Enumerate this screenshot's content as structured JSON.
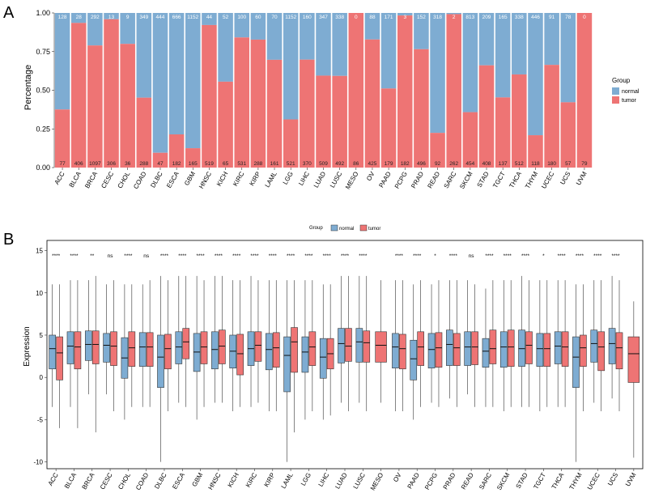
{
  "panel_labels": [
    "A",
    "B"
  ],
  "chart_data": [
    {
      "type": "bar",
      "stacked": true,
      "ylabel": "Percentage",
      "ylim": [
        0,
        1
      ],
      "yticks": [
        "0.00",
        "0.25",
        "0.50",
        "0.75",
        "1.00"
      ],
      "categories": [
        "ACC",
        "BLCA",
        "BRCA",
        "CESC",
        "CHOL",
        "COAD",
        "DLBC",
        "ESCA",
        "GBM",
        "HNSC",
        "KICH",
        "KIRC",
        "KIRP",
        "LAML",
        "LGG",
        "LIHC",
        "LUAD",
        "LUSC",
        "MESO",
        "OV",
        "PAAD",
        "PCPG",
        "PRAD",
        "READ",
        "SARC",
        "SKCM",
        "STAD",
        "TGCT",
        "THCA",
        "THYM",
        "UCEC",
        "UCS",
        "UVM"
      ],
      "legend_title": "Group",
      "legend_position": "right",
      "series": [
        {
          "name": "normal",
          "color": "#7EACD2",
          "counts": [
            128,
            28,
            292,
            13,
            9,
            349,
            444,
            666,
            1152,
            44,
            52,
            100,
            60,
            70,
            1152,
            160,
            347,
            338,
            0,
            88,
            171,
            3,
            152,
            318,
            2,
            813,
            209,
            165,
            338,
            446,
            91,
            78,
            0
          ]
        },
        {
          "name": "tumor",
          "color": "#EE7474",
          "counts": [
            77,
            406,
            1097,
            306,
            36,
            288,
            47,
            182,
            165,
            519,
            65,
            531,
            288,
            161,
            521,
            370,
            509,
            492,
            86,
            425,
            179,
            182,
            496,
            92,
            262,
            454,
            408,
            137,
            512,
            118,
            180,
            57,
            79
          ]
        }
      ]
    },
    {
      "type": "box",
      "ylabel": "Expression",
      "ylim": [
        -10.8,
        16.2
      ],
      "yticks": [
        -10,
        -5,
        0,
        5,
        10,
        15
      ],
      "categories": [
        "ACC",
        "BLCA",
        "BRCA",
        "CESC",
        "CHOL",
        "COAD",
        "DLBC",
        "ESCA",
        "GBM",
        "HNSC",
        "KICH",
        "KIRC",
        "KIRP",
        "LAML",
        "LGG",
        "LIHC",
        "LUAD",
        "LUSC",
        "MESO",
        "OV",
        "PAAD",
        "PCPG",
        "PRAD",
        "READ",
        "SARC",
        "SKCM",
        "STAD",
        "TGCT",
        "THCA",
        "THYM",
        "UCEC",
        "UCS",
        "UVM"
      ],
      "significance": [
        "****",
        "****",
        "**",
        "ns",
        "****",
        "ns",
        "****",
        "****",
        "****",
        "****",
        "****",
        "****",
        "****",
        "****",
        "****",
        "****",
        "****",
        "****",
        "",
        "****",
        "****",
        "*",
        "****",
        "ns",
        "****",
        "****",
        "****",
        "*",
        "****",
        "****",
        "****",
        "****",
        ""
      ],
      "legend_title": "Group",
      "legend_position": "top",
      "series": [
        {
          "name": "normal",
          "color": "#7EACD2",
          "boxes": [
            [
              -3.5,
              1,
              3.4,
              5,
              11
            ],
            [
              -3.5,
              1.6,
              3.7,
              5.4,
              11.5
            ],
            [
              -2,
              2,
              3.9,
              5.5,
              11.5
            ],
            [
              -2,
              1.8,
              3.8,
              5.2,
              11
            ],
            [
              -5,
              -0.1,
              2.3,
              4.7,
              11
            ],
            [
              -3.5,
              1.3,
              3.6,
              5.3,
              11
            ],
            [
              -10,
              -1.2,
              2.4,
              5,
              12
            ],
            [
              -3,
              1.6,
              3.6,
              5.4,
              12
            ],
            [
              -5,
              0.7,
              3,
              5.2,
              12
            ],
            [
              -3,
              1,
              3.3,
              5.4,
              12
            ],
            [
              -4,
              1.1,
              3.1,
              5,
              11.5
            ],
            [
              -3.5,
              1.4,
              3.4,
              5.4,
              12
            ],
            [
              -4,
              0.9,
              3.3,
              5.2,
              11.5
            ],
            [
              -10,
              -1.7,
              2.6,
              4.8,
              11.5
            ],
            [
              -5,
              0.6,
              3,
              4.8,
              11.5
            ],
            [
              -5,
              -0.1,
              2.4,
              4.6,
              11
            ],
            [
              -3,
              1.7,
              4,
              5.8,
              12
            ],
            [
              -3,
              1.8,
              4.2,
              5.8,
              12
            ],
            null,
            [
              -4,
              1.1,
              3.6,
              5.2,
              11.5
            ],
            [
              -5,
              -0.3,
              2.2,
              4.4,
              11
            ],
            [
              -3,
              1.1,
              3.3,
              5.2,
              11
            ],
            [
              -2.5,
              1.4,
              3.9,
              5.6,
              11.5
            ],
            [
              -2,
              1.4,
              3.6,
              5.4,
              11.5
            ],
            [
              -3.5,
              1.2,
              3.1,
              4.6,
              10.5
            ],
            [
              -4,
              1.2,
              3.6,
              5.4,
              11.5
            ],
            [
              -3.5,
              1.3,
              3.4,
              5.6,
              12
            ],
            [
              -4,
              1.3,
              3.4,
              5.2,
              11.5
            ],
            [
              -3.5,
              1.6,
              3.7,
              5.4,
              11.5
            ],
            [
              -10,
              -1.2,
              2.4,
              4.8,
              11
            ],
            [
              -3,
              1.8,
              4,
              5.6,
              11.5
            ],
            [
              -2.5,
              1.6,
              4,
              5.8,
              12
            ],
            null
          ]
        },
        {
          "name": "tumor",
          "color": "#EE7474",
          "boxes": [
            [
              -6,
              -0.3,
              2.9,
              4.8,
              11
            ],
            [
              -6,
              1,
              3.6,
              5.4,
              11.5
            ],
            [
              -6.5,
              1.6,
              3.9,
              5.5,
              12
            ],
            [
              -4,
              1.4,
              3.7,
              5.4,
              11.5
            ],
            [
              -3.5,
              1.3,
              3.5,
              5.4,
              11
            ],
            [
              -3.5,
              1.3,
              3.6,
              5.3,
              11.5
            ],
            [
              -4,
              1,
              3.4,
              5.1,
              11.5
            ],
            [
              -3.5,
              2.2,
              4.2,
              5.8,
              12
            ],
            [
              -3.5,
              1.6,
              3.6,
              5.4,
              11.5
            ],
            [
              -3,
              1.6,
              3.7,
              5.6,
              12
            ],
            [
              -3.5,
              0.3,
              2.8,
              5.1,
              11.5
            ],
            [
              -3,
              1.9,
              3.8,
              5.4,
              11.5
            ],
            [
              -4,
              1.2,
              3.5,
              5.3,
              11.5
            ],
            [
              -6.5,
              0.6,
              4.2,
              5.9,
              11.5
            ],
            [
              -4,
              1.4,
              3.6,
              5.4,
              11.5
            ],
            [
              -4.5,
              1,
              2.8,
              4.6,
              11
            ],
            [
              -4,
              1.9,
              3.7,
              5.8,
              12
            ],
            [
              -4,
              1.8,
              4.1,
              5.5,
              12
            ],
            [
              -3,
              1.8,
              3.8,
              5.4,
              11.5
            ],
            [
              -4,
              1,
              3.4,
              5.1,
              11.5
            ],
            [
              -3.5,
              1.4,
              3.6,
              5.4,
              11.5
            ],
            [
              -3.5,
              1.2,
              3.5,
              5.3,
              11.5
            ],
            [
              -3.5,
              1.4,
              3.5,
              5.2,
              11.5
            ],
            [
              -3.5,
              1.5,
              3.6,
              5.4,
              11
            ],
            [
              -3.5,
              1.6,
              3.4,
              5.6,
              11.5
            ],
            [
              -3.5,
              1.3,
              3.6,
              5.6,
              11.5
            ],
            [
              -3.5,
              1.6,
              3.8,
              5.4,
              11.5
            ],
            [
              -3.5,
              1.3,
              3.4,
              5.2,
              11.5
            ],
            [
              -3.5,
              1.3,
              3.6,
              5.4,
              11.5
            ],
            [
              -4,
              1.3,
              3.5,
              5,
              11
            ],
            [
              -4,
              0.8,
              3.6,
              5.4,
              11.5
            ],
            [
              -4,
              1,
              3.5,
              5.3,
              11.5
            ],
            [
              -9.5,
              -0.6,
              2.8,
              4.8,
              9
            ]
          ]
        }
      ]
    }
  ]
}
